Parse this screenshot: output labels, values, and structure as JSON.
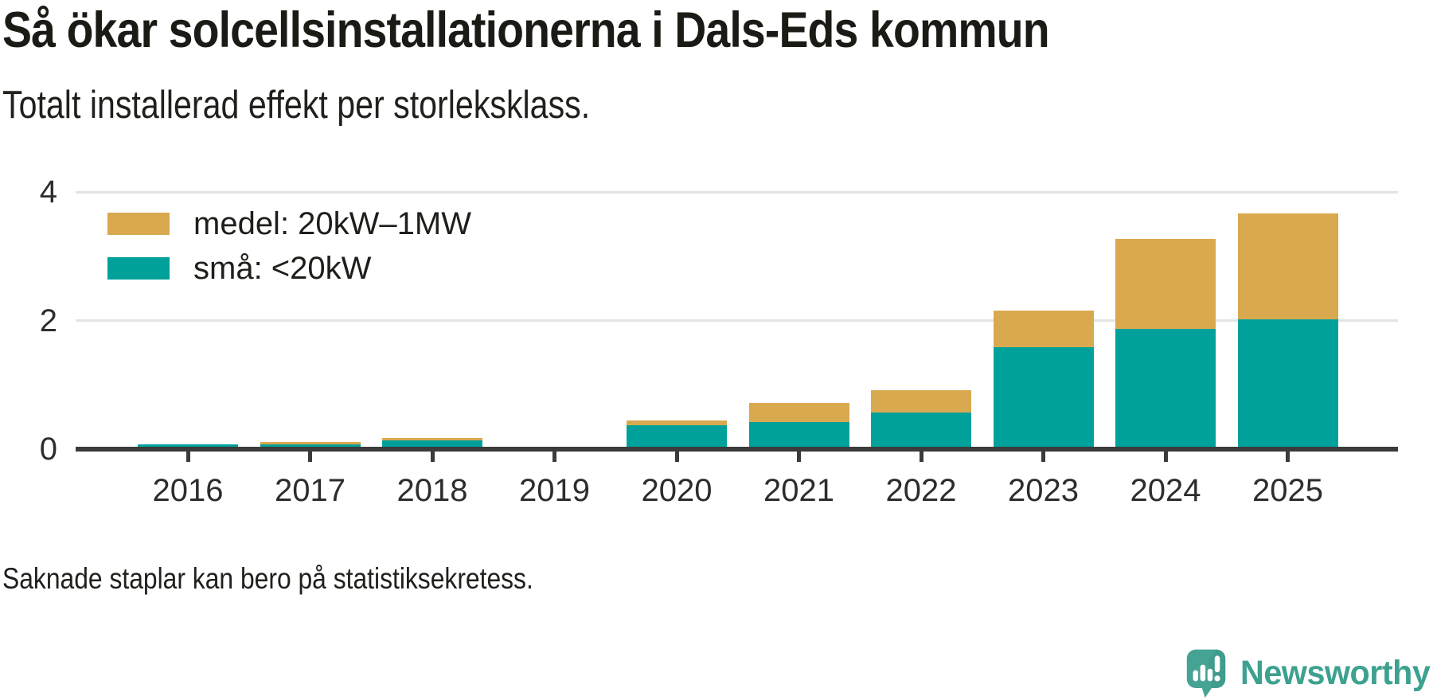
{
  "header": {
    "title": "Så ökar solcellsinstallationerna i Dals-Eds kommun",
    "subtitle": "Totalt installerad effekt per storleksklass."
  },
  "chart_data": {
    "type": "bar",
    "stacked": true,
    "title": "Så ökar solcellsinstallationerna i Dals-Eds kommun",
    "subtitle": "Totalt installerad effekt per storleksklass.",
    "categories": [
      "2016",
      "2017",
      "2018",
      "2019",
      "2020",
      "2021",
      "2022",
      "2023",
      "2024",
      "2025"
    ],
    "series": [
      {
        "name": "medel: 20kW–1MW",
        "color": "#d9a94f",
        "stack_order": "top",
        "values": [
          0,
          0.03,
          0.03,
          null,
          0.08,
          0.3,
          0.35,
          0.57,
          1.4,
          1.65
        ]
      },
      {
        "name": "små: <20kW",
        "color": "#00a19a",
        "stack_order": "bottom",
        "values": [
          0.08,
          0.08,
          0.14,
          null,
          0.37,
          0.42,
          0.57,
          1.59,
          1.87,
          2.02
        ]
      }
    ],
    "stack_totals": [
      0.08,
      0.11,
      0.17,
      null,
      0.45,
      0.72,
      0.92,
      2.16,
      3.27,
      3.67
    ],
    "missing_categories": [
      "2019"
    ],
    "xlabel": "",
    "ylabel": "",
    "ylim": [
      0,
      4
    ],
    "yticks": [
      0,
      2,
      4
    ],
    "grid": "horizontal-light",
    "legend_position": "top-left-inside"
  },
  "legend": {
    "items": [
      {
        "label": "medel: 20kW–1MW",
        "color": "#d9a94f"
      },
      {
        "label": "små: <20kW",
        "color": "#00a19a"
      }
    ]
  },
  "footnote": "Saknade staplar kan bero på statistiksekretess.",
  "branding": {
    "wordmark": "Newsworthy",
    "logo_icon": "newsworthy-speech-bubble-bar-chart-icon",
    "icon_color": "#45a394",
    "text_color": "#3da18f"
  },
  "colors": {
    "background": "#ffffff",
    "bar_small": "#00a19a",
    "bar_medium": "#d9a94f",
    "axis": "#3b3b3b",
    "gridline": "#e4e4e4",
    "text": "#1b1b16",
    "tick_label": "#2d2d2d"
  }
}
